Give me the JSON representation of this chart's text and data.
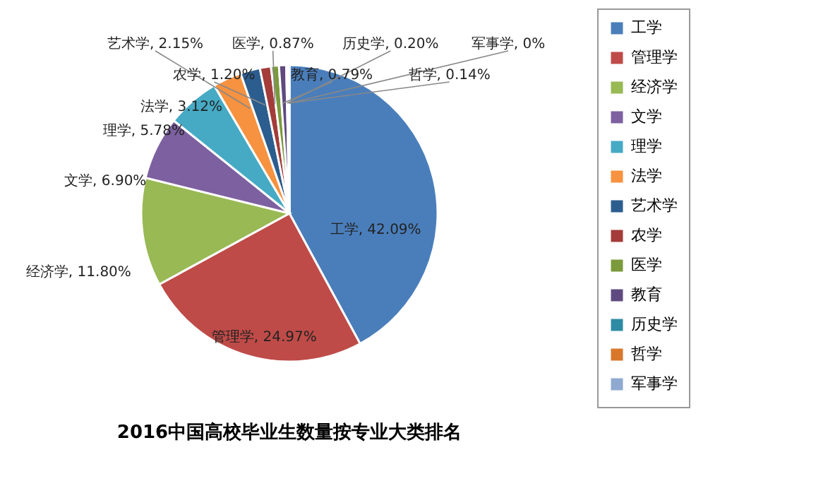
{
  "chart_data": {
    "type": "pie",
    "title": "2016中国高校毕业生数量按专业大类排名",
    "categories": [
      "工学",
      "管理学",
      "经济学",
      "文学",
      "理学",
      "法学",
      "艺术学",
      "农学",
      "医学",
      "教育",
      "历史学",
      "哲学",
      "军事学"
    ],
    "values": [
      42.09,
      24.97,
      11.8,
      6.9,
      5.78,
      3.12,
      2.15,
      1.2,
      0.87,
      0.79,
      0.2,
      0.14,
      0
    ],
    "value_labels": [
      "工学, 42.09%",
      "管理学, 24.97%",
      "经济学, 11.80%",
      "文学, 6.90%",
      "理学, 5.78%",
      "法学, 3.12%",
      "艺术学, 2.15%",
      "农学, 1.20%",
      "医学, 0.87%",
      "教育, 0.79%",
      "历史学, 0.20%",
      "哲学, 0.14%",
      "军事学, 0%"
    ],
    "colors": [
      "#4a7ebb",
      "#be4b48",
      "#98b954",
      "#7d60a0",
      "#46aac5",
      "#f69240",
      "#2c5d8f",
      "#a33c3a",
      "#7a9a3c",
      "#5f4a80",
      "#2f8aa3",
      "#d9772a",
      "#8fa9d0"
    ],
    "legend": "right"
  }
}
